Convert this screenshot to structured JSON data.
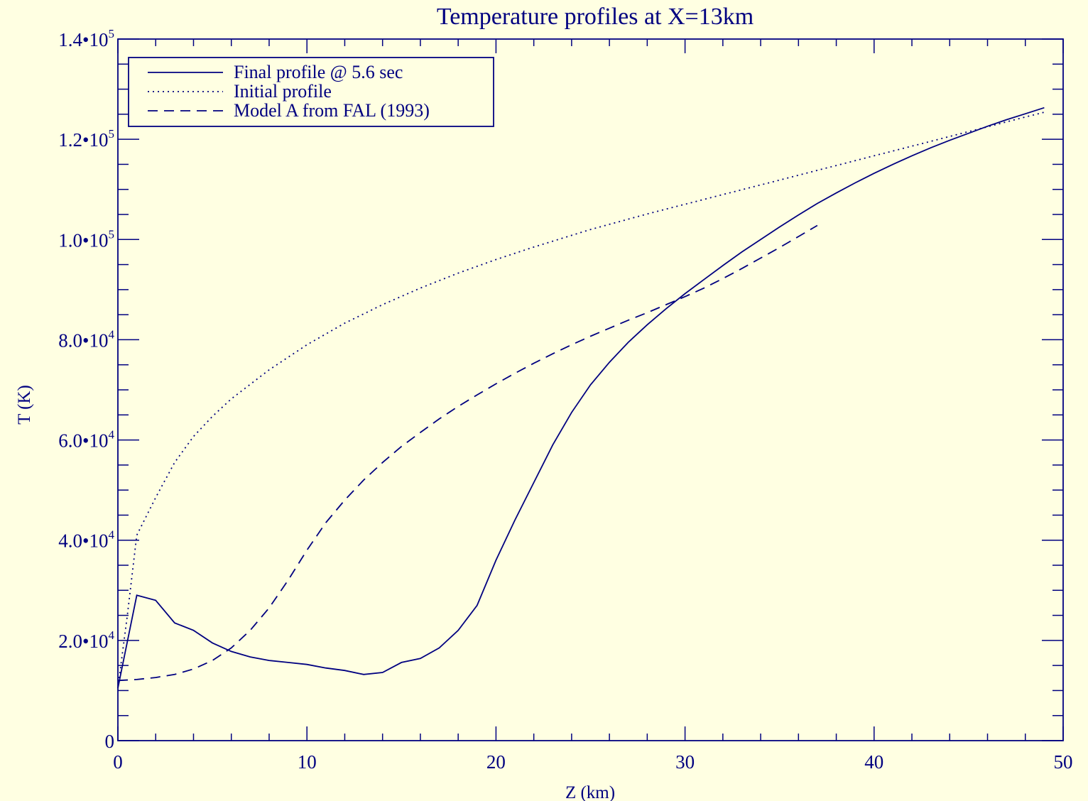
{
  "chart_data": {
    "type": "line",
    "title": "Temperature profiles at X=13km",
    "xlabel": "Z (km)",
    "ylabel": "T (K)",
    "xlim": [
      0,
      50
    ],
    "ylim": [
      0,
      140000
    ],
    "x_major_ticks": [
      0,
      10,
      20,
      30,
      40,
      50
    ],
    "x_tick_labels": [
      "0",
      "10",
      "20",
      "30",
      "40",
      "50"
    ],
    "y_major_ticks": [
      0,
      20000,
      40000,
      60000,
      80000,
      100000,
      120000,
      140000
    ],
    "y_tick_labels": [
      {
        "mantissa": "0",
        "exp": ""
      },
      {
        "mantissa": "2.0•10",
        "exp": "4"
      },
      {
        "mantissa": "4.0•10",
        "exp": "4"
      },
      {
        "mantissa": "6.0•10",
        "exp": "4"
      },
      {
        "mantissa": "8.0•10",
        "exp": "4"
      },
      {
        "mantissa": "1.0•10",
        "exp": "5"
      },
      {
        "mantissa": "1.2•10",
        "exp": "5"
      },
      {
        "mantissa": "1.4•10",
        "exp": "5"
      }
    ],
    "grid": false,
    "legend_position": "top-left",
    "color": "#000080",
    "series": [
      {
        "name": "Final profile @ 5.6 sec",
        "style": "solid",
        "x": [
          0,
          1,
          2,
          3,
          4,
          5,
          6,
          7,
          8,
          9,
          10,
          11,
          12,
          13,
          14,
          15,
          16,
          17,
          18,
          19,
          20,
          21,
          22,
          23,
          24,
          25,
          26,
          27,
          28,
          29,
          30,
          31,
          32,
          33,
          34,
          35,
          36,
          37,
          38,
          39,
          40,
          41,
          42,
          43,
          44,
          45,
          46,
          47,
          48,
          49
        ],
        "y": [
          10500,
          29000,
          28000,
          23500,
          22000,
          19500,
          17800,
          16700,
          16000,
          15600,
          15200,
          14500,
          14000,
          13200,
          13600,
          15600,
          16400,
          18500,
          22000,
          27000,
          36000,
          44000,
          51500,
          59000,
          65500,
          71000,
          75500,
          79500,
          83000,
          86200,
          89200,
          92000,
          94800,
          97500,
          100000,
          102500,
          104900,
          107200,
          109300,
          111300,
          113200,
          115000,
          116700,
          118300,
          119800,
          121200,
          122600,
          123900,
          125100,
          126300
        ]
      },
      {
        "name": "Initial profile",
        "style": "dotted",
        "x": [
          0,
          0.5,
          1,
          2,
          3,
          4,
          5,
          6,
          8,
          10,
          12,
          14,
          16,
          18,
          20,
          22,
          25,
          28,
          31,
          34,
          37,
          40,
          43,
          46,
          49
        ],
        "y": [
          10500,
          25000,
          41000,
          48500,
          55500,
          60700,
          64700,
          68200,
          74000,
          79000,
          83300,
          87000,
          90300,
          93300,
          96000,
          98500,
          102000,
          105100,
          108000,
          110900,
          113800,
          116700,
          119600,
          122500,
          125400
        ]
      },
      {
        "name": "Model A from FAL (1993)",
        "style": "dashed",
        "x": [
          0,
          1,
          2,
          3,
          4,
          5,
          6,
          7,
          8,
          9,
          10,
          11,
          12,
          13,
          14,
          15,
          16,
          17,
          18,
          19,
          20,
          21,
          22,
          23,
          24,
          25,
          26,
          27,
          28,
          29,
          30,
          31,
          32,
          33,
          34,
          35,
          36,
          37
        ],
        "y": [
          12000,
          12200,
          12600,
          13200,
          14300,
          16000,
          18500,
          22000,
          26500,
          32000,
          38000,
          43500,
          48000,
          52000,
          55500,
          58700,
          61500,
          64200,
          66700,
          69000,
          71200,
          73300,
          75300,
          77200,
          79000,
          80700,
          82300,
          83900,
          85400,
          87000,
          88600,
          90300,
          92200,
          94200,
          96300,
          98400,
          100600,
          102800
        ]
      }
    ]
  }
}
